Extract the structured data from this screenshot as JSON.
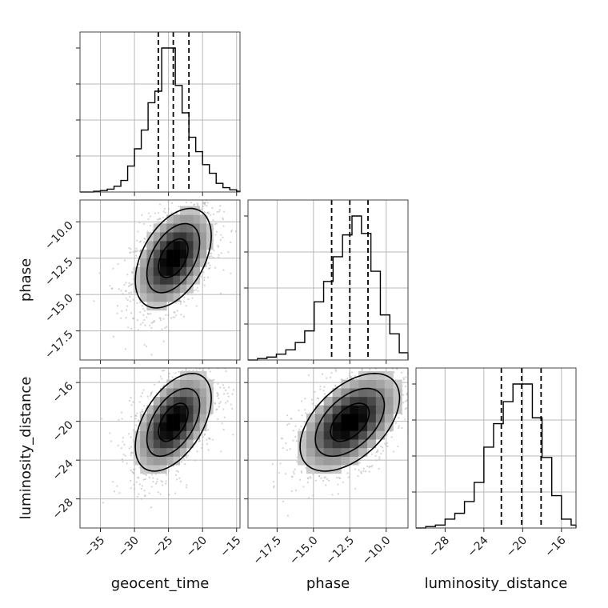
{
  "chart_data": {
    "type": "corner",
    "parameters": [
      "geocent_time",
      "phase",
      "luminosity_distance"
    ],
    "grid": true,
    "quantile_lines": "dashed",
    "ranges": {
      "geocent_time": [
        -38,
        -14.5
      ],
      "phase": [
        -19.5,
        -8.5
      ],
      "luminosity_distance": [
        -31,
        -14.5
      ]
    },
    "ticks": {
      "geocent_time": [
        -35,
        -30,
        -25,
        -20,
        -15
      ],
      "phase": [
        -17.5,
        -15.0,
        -12.5,
        -10.0
      ],
      "luminosity_distance": [
        -28,
        -24,
        -20,
        -16
      ]
    },
    "tick_labels": {
      "geocent_time": [
        "−35",
        "−30",
        "−25",
        "−20",
        "−15"
      ],
      "phase": [
        "−17.5",
        "−15.0",
        "−12.5",
        "−10.0"
      ],
      "luminosity_distance": [
        "−28",
        "−24",
        "−20",
        "−16"
      ]
    },
    "quantiles": {
      "geocent_time": [
        -26.5,
        -24.3,
        -22.0
      ],
      "phase": [
        -13.75,
        -12.5,
        -11.25
      ],
      "luminosity_distance": [
        -22.2,
        -20.1,
        -18.1
      ]
    },
    "histograms": {
      "geocent_time": {
        "edges": [
          -38,
          -37,
          -36,
          -35,
          -34,
          -33,
          -32,
          -31,
          -30,
          -29,
          -28,
          -27,
          -26,
          -25,
          -24,
          -23,
          -22,
          -21,
          -20,
          -19,
          -18,
          -17,
          -16,
          -15,
          -14.5
        ],
        "counts": [
          0,
          0,
          0.005,
          0.01,
          0.02,
          0.04,
          0.08,
          0.18,
          0.3,
          0.43,
          0.62,
          0.7,
          1.0,
          1.0,
          0.74,
          0.55,
          0.38,
          0.28,
          0.19,
          0.13,
          0.06,
          0.03,
          0.015,
          0.005
        ]
      },
      "phase": {
        "edges": [
          -19.5,
          -18.85,
          -18.2,
          -17.55,
          -16.9,
          -16.25,
          -15.6,
          -14.95,
          -14.3,
          -13.65,
          -13.0,
          -12.35,
          -11.7,
          -11.05,
          -10.4,
          -9.75,
          -9.1,
          -8.5
        ],
        "counts": [
          0,
          0.01,
          0.02,
          0.04,
          0.07,
          0.12,
          0.2,
          0.4,
          0.54,
          0.71,
          0.86,
          0.99,
          0.87,
          0.61,
          0.31,
          0.18,
          0.05
        ]
      },
      "luminosity_distance": {
        "edges": [
          -31,
          -30,
          -29,
          -28,
          -27,
          -26,
          -25,
          -24,
          -23,
          -22,
          -21,
          -20,
          -19,
          -18,
          -17,
          -16,
          -15,
          -14.5
        ],
        "counts": [
          0,
          0.01,
          0.02,
          0.06,
          0.1,
          0.18,
          0.31,
          0.55,
          0.71,
          0.86,
          0.98,
          0.98,
          0.75,
          0.48,
          0.22,
          0.06,
          0.02
        ]
      }
    },
    "joint_distributions": [
      {
        "x": "geocent_time",
        "y": "phase",
        "mean": [
          -24.3,
          -12.5
        ],
        "std": [
          3.1,
          1.9
        ],
        "correlation": 0.45
      },
      {
        "x": "geocent_time",
        "y": "luminosity_distance",
        "mean": [
          -24.3,
          -20.1
        ],
        "std": [
          3.1,
          2.8
        ],
        "correlation": 0.5
      },
      {
        "x": "phase",
        "y": "luminosity_distance",
        "mean": [
          -12.5,
          -20.1
        ],
        "std": [
          1.9,
          2.8
        ],
        "correlation": 0.5
      }
    ],
    "xlabels": [
      "geocent_time",
      "phase",
      "luminosity_distance"
    ],
    "ylabels": [
      "phase",
      "luminosity_distance"
    ]
  }
}
